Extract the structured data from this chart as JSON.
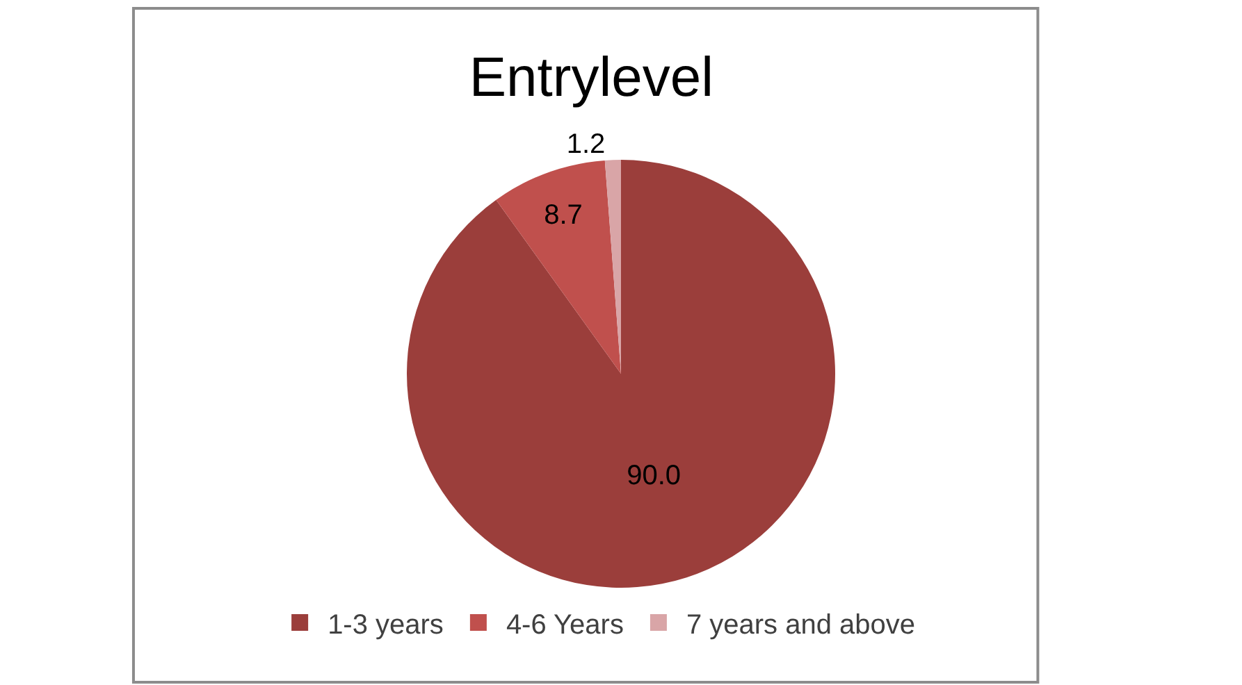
{
  "chart_data": {
    "type": "pie",
    "title": "Entrylevel",
    "categories": [
      "1-3 years",
      "4-6 Years",
      "7 years and above"
    ],
    "values": [
      90.0,
      8.7,
      1.2
    ],
    "value_labels": [
      "90.0",
      "8.7",
      "1.2"
    ],
    "colors": [
      "#9b3e3b",
      "#c0504d",
      "#d9a5a7"
    ],
    "legend": "bottom"
  }
}
